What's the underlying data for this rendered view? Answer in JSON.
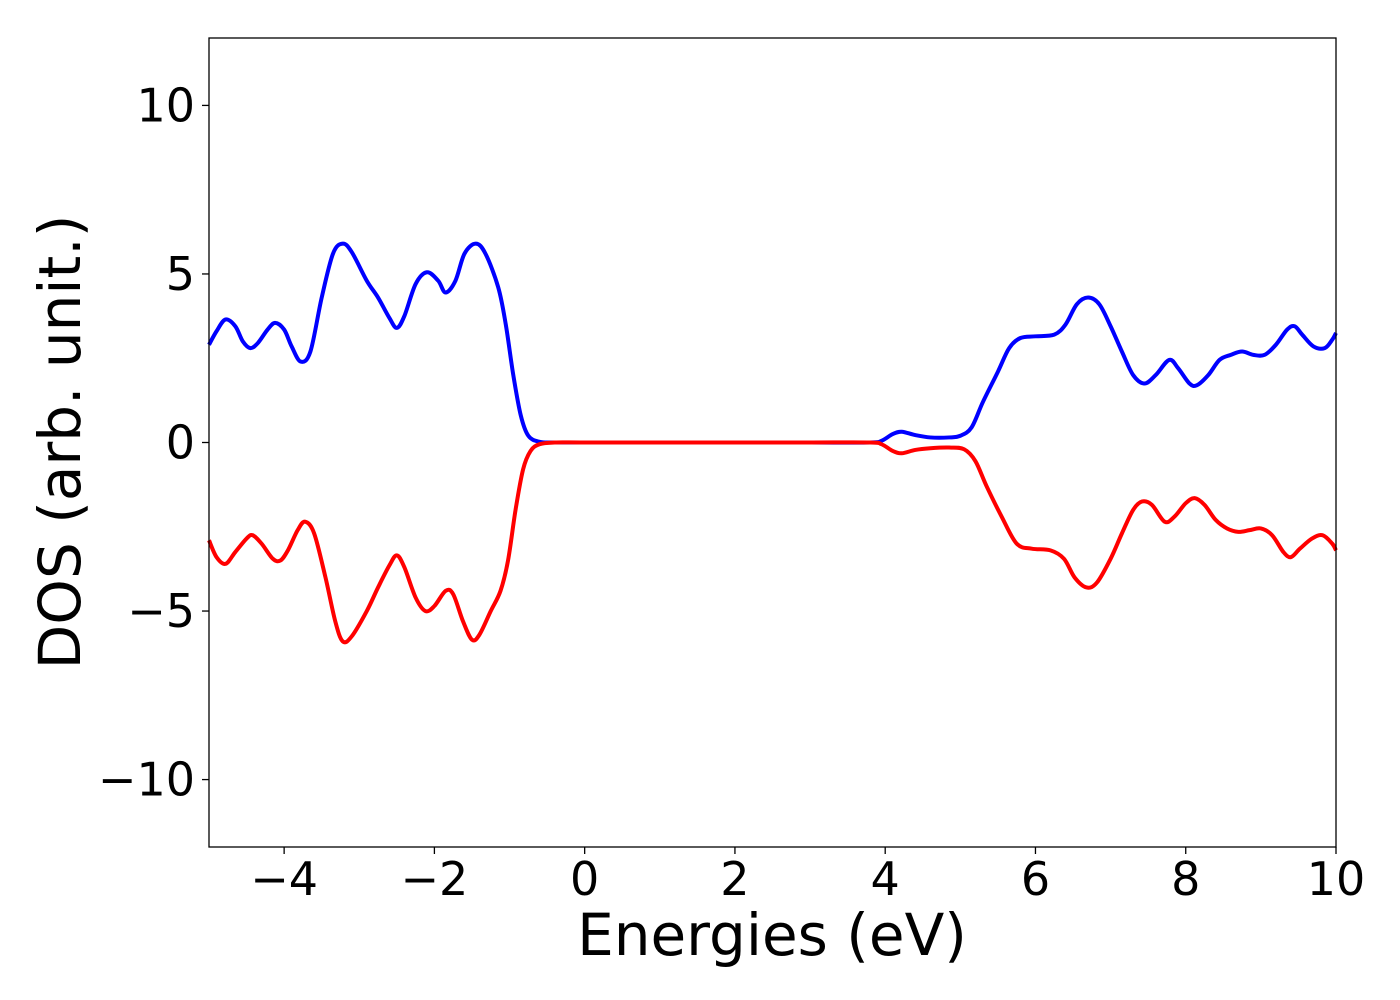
{
  "chart_data": {
    "type": "line",
    "title": "",
    "xlabel": "Energies (eV)",
    "ylabel": "DOS (arb. unit.)",
    "xlim": [
      -5,
      10
    ],
    "ylim": [
      -12,
      12
    ],
    "x_ticks": [
      -4,
      -2,
      0,
      2,
      4,
      6,
      8,
      10
    ],
    "y_ticks": [
      -10,
      -5,
      0,
      5,
      10
    ],
    "x_tick_labels": [
      "−4",
      "−2",
      "0",
      "2",
      "4",
      "6",
      "8",
      "10"
    ],
    "y_tick_labels": [
      "−10",
      "−5",
      "0",
      "5",
      "10"
    ],
    "grid": false,
    "legend": "none",
    "series": [
      {
        "color": "#0000ff",
        "points": [
          [
            -5.0,
            2.9
          ],
          [
            -4.9,
            3.3
          ],
          [
            -4.78,
            3.65
          ],
          [
            -4.65,
            3.45
          ],
          [
            -4.55,
            3.0
          ],
          [
            -4.45,
            2.8
          ],
          [
            -4.35,
            2.95
          ],
          [
            -4.22,
            3.35
          ],
          [
            -4.12,
            3.55
          ],
          [
            -4.0,
            3.35
          ],
          [
            -3.9,
            2.85
          ],
          [
            -3.78,
            2.4
          ],
          [
            -3.65,
            2.7
          ],
          [
            -3.5,
            4.3
          ],
          [
            -3.35,
            5.6
          ],
          [
            -3.22,
            5.9
          ],
          [
            -3.1,
            5.65
          ],
          [
            -2.9,
            4.8
          ],
          [
            -2.75,
            4.3
          ],
          [
            -2.6,
            3.7
          ],
          [
            -2.5,
            3.4
          ],
          [
            -2.4,
            3.75
          ],
          [
            -2.25,
            4.7
          ],
          [
            -2.1,
            5.05
          ],
          [
            -1.95,
            4.8
          ],
          [
            -1.85,
            4.45
          ],
          [
            -1.72,
            4.8
          ],
          [
            -1.6,
            5.6
          ],
          [
            -1.45,
            5.9
          ],
          [
            -1.32,
            5.6
          ],
          [
            -1.15,
            4.6
          ],
          [
            -1.05,
            3.5
          ],
          [
            -0.95,
            2.0
          ],
          [
            -0.85,
            0.8
          ],
          [
            -0.75,
            0.2
          ],
          [
            -0.6,
            0.02
          ],
          [
            -0.4,
            0.0
          ],
          [
            0.0,
            0.0
          ],
          [
            1.0,
            0.0
          ],
          [
            2.0,
            0.0
          ],
          [
            3.0,
            0.0
          ],
          [
            3.8,
            0.0
          ],
          [
            3.95,
            0.05
          ],
          [
            4.1,
            0.25
          ],
          [
            4.22,
            0.32
          ],
          [
            4.4,
            0.22
          ],
          [
            4.6,
            0.15
          ],
          [
            4.85,
            0.15
          ],
          [
            5.0,
            0.2
          ],
          [
            5.15,
            0.45
          ],
          [
            5.3,
            1.2
          ],
          [
            5.5,
            2.1
          ],
          [
            5.65,
            2.8
          ],
          [
            5.8,
            3.1
          ],
          [
            6.0,
            3.15
          ],
          [
            6.25,
            3.2
          ],
          [
            6.4,
            3.5
          ],
          [
            6.55,
            4.1
          ],
          [
            6.7,
            4.3
          ],
          [
            6.85,
            4.1
          ],
          [
            7.0,
            3.45
          ],
          [
            7.15,
            2.7
          ],
          [
            7.3,
            2.0
          ],
          [
            7.45,
            1.75
          ],
          [
            7.6,
            2.0
          ],
          [
            7.78,
            2.45
          ],
          [
            7.9,
            2.2
          ],
          [
            8.05,
            1.75
          ],
          [
            8.15,
            1.7
          ],
          [
            8.3,
            2.0
          ],
          [
            8.45,
            2.45
          ],
          [
            8.6,
            2.6
          ],
          [
            8.75,
            2.7
          ],
          [
            8.9,
            2.6
          ],
          [
            9.05,
            2.6
          ],
          [
            9.2,
            2.9
          ],
          [
            9.35,
            3.35
          ],
          [
            9.45,
            3.45
          ],
          [
            9.55,
            3.2
          ],
          [
            9.7,
            2.85
          ],
          [
            9.85,
            2.8
          ],
          [
            9.95,
            3.05
          ],
          [
            10.0,
            3.25
          ]
        ]
      },
      {
        "color": "#ff0000",
        "points": [
          [
            -5.0,
            -2.9
          ],
          [
            -4.9,
            -3.4
          ],
          [
            -4.78,
            -3.6
          ],
          [
            -4.65,
            -3.25
          ],
          [
            -4.5,
            -2.85
          ],
          [
            -4.42,
            -2.75
          ],
          [
            -4.3,
            -3.0
          ],
          [
            -4.15,
            -3.45
          ],
          [
            -4.05,
            -3.5
          ],
          [
            -3.95,
            -3.2
          ],
          [
            -3.82,
            -2.6
          ],
          [
            -3.72,
            -2.35
          ],
          [
            -3.6,
            -2.7
          ],
          [
            -3.45,
            -4.0
          ],
          [
            -3.32,
            -5.3
          ],
          [
            -3.22,
            -5.9
          ],
          [
            -3.1,
            -5.75
          ],
          [
            -2.9,
            -5.0
          ],
          [
            -2.75,
            -4.3
          ],
          [
            -2.6,
            -3.65
          ],
          [
            -2.5,
            -3.35
          ],
          [
            -2.4,
            -3.7
          ],
          [
            -2.25,
            -4.6
          ],
          [
            -2.12,
            -5.0
          ],
          [
            -2.0,
            -4.85
          ],
          [
            -1.85,
            -4.4
          ],
          [
            -1.75,
            -4.5
          ],
          [
            -1.62,
            -5.3
          ],
          [
            -1.5,
            -5.85
          ],
          [
            -1.4,
            -5.7
          ],
          [
            -1.25,
            -5.0
          ],
          [
            -1.12,
            -4.4
          ],
          [
            -1.02,
            -3.5
          ],
          [
            -0.92,
            -2.0
          ],
          [
            -0.82,
            -0.8
          ],
          [
            -0.72,
            -0.25
          ],
          [
            -0.6,
            -0.05
          ],
          [
            -0.4,
            0.0
          ],
          [
            0.0,
            0.0
          ],
          [
            1.0,
            0.0
          ],
          [
            2.0,
            0.0
          ],
          [
            3.0,
            0.0
          ],
          [
            3.8,
            0.0
          ],
          [
            3.95,
            -0.05
          ],
          [
            4.1,
            -0.25
          ],
          [
            4.22,
            -0.32
          ],
          [
            4.4,
            -0.22
          ],
          [
            4.6,
            -0.17
          ],
          [
            4.85,
            -0.15
          ],
          [
            5.05,
            -0.2
          ],
          [
            5.2,
            -0.55
          ],
          [
            5.35,
            -1.3
          ],
          [
            5.55,
            -2.2
          ],
          [
            5.75,
            -3.0
          ],
          [
            5.95,
            -3.15
          ],
          [
            6.2,
            -3.2
          ],
          [
            6.38,
            -3.45
          ],
          [
            6.52,
            -4.0
          ],
          [
            6.68,
            -4.3
          ],
          [
            6.82,
            -4.15
          ],
          [
            7.0,
            -3.45
          ],
          [
            7.15,
            -2.7
          ],
          [
            7.3,
            -2.0
          ],
          [
            7.42,
            -1.75
          ],
          [
            7.55,
            -1.85
          ],
          [
            7.72,
            -2.35
          ],
          [
            7.85,
            -2.2
          ],
          [
            8.0,
            -1.8
          ],
          [
            8.12,
            -1.65
          ],
          [
            8.25,
            -1.85
          ],
          [
            8.4,
            -2.3
          ],
          [
            8.55,
            -2.55
          ],
          [
            8.7,
            -2.65
          ],
          [
            8.85,
            -2.6
          ],
          [
            9.0,
            -2.55
          ],
          [
            9.15,
            -2.75
          ],
          [
            9.3,
            -3.25
          ],
          [
            9.4,
            -3.4
          ],
          [
            9.52,
            -3.15
          ],
          [
            9.68,
            -2.85
          ],
          [
            9.82,
            -2.75
          ],
          [
            9.95,
            -3.0
          ],
          [
            10.0,
            -3.2
          ]
        ]
      }
    ]
  }
}
